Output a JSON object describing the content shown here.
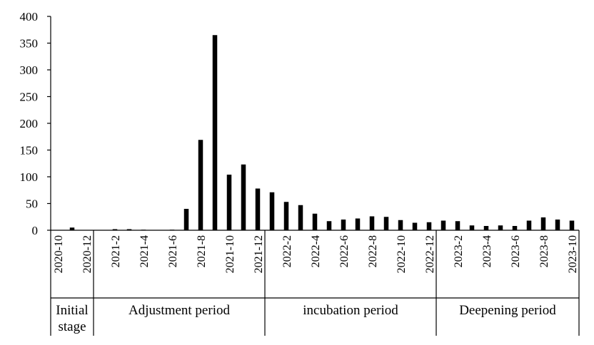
{
  "chart_data": {
    "type": "bar",
    "title": "",
    "xlabel": "",
    "ylabel": "",
    "ylim": [
      0,
      400
    ],
    "yticks": [
      0,
      50,
      100,
      150,
      200,
      250,
      300,
      350,
      400
    ],
    "grid": false,
    "legend": "none",
    "bar_color": "#000000",
    "categories": [
      "2020-10",
      "2020-11",
      "2020-12",
      "2021-1",
      "2021-2",
      "2021-3",
      "2021-4",
      "2021-5",
      "2021-6",
      "2021-7",
      "2021-8",
      "2021-9",
      "2021-10",
      "2021-11",
      "2021-12",
      "2022-1",
      "2022-2",
      "2022-3",
      "2022-4",
      "2022-5",
      "2022-6",
      "2022-7",
      "2022-8",
      "2022-9",
      "2022-10",
      "2022-11",
      "2022-12",
      "2023-1",
      "2023-2",
      "2023-3",
      "2023-4",
      "2023-5",
      "2023-6",
      "2023-7",
      "2023-8",
      "2023-9",
      "2023-10"
    ],
    "tick_labels": [
      "2020-10",
      "",
      "2020-12",
      "",
      "2021-2",
      "",
      "2021-4",
      "",
      "2021-6",
      "",
      "2021-8",
      "",
      "2021-10",
      "",
      "2021-12",
      "",
      "2022-2",
      "",
      "2022-4",
      "",
      "2022-6",
      "",
      "2022-8",
      "",
      "2022-10",
      "",
      "2022-12",
      "",
      "2023-2",
      "",
      "2023-4",
      "",
      "2023-6",
      "",
      "2023-8",
      "",
      "2023-10"
    ],
    "values": [
      0,
      5,
      0,
      0,
      2,
      2,
      1,
      0,
      1,
      40,
      169,
      365,
      104,
      123,
      78,
      71,
      53,
      47,
      31,
      17,
      20,
      22,
      26,
      25,
      19,
      14,
      15,
      18,
      17,
      9,
      8,
      9,
      8,
      18,
      24,
      20,
      18
    ],
    "groups": [
      {
        "label_lines": [
          "Initial",
          "stage"
        ],
        "start": 0,
        "count": 3
      },
      {
        "label_lines": [
          "Adjustment period"
        ],
        "start": 3,
        "count": 12
      },
      {
        "label_lines": [
          "incubation period"
        ],
        "start": 15,
        "count": 12
      },
      {
        "label_lines": [
          "Deepening period"
        ],
        "start": 27,
        "count": 10
      }
    ]
  }
}
